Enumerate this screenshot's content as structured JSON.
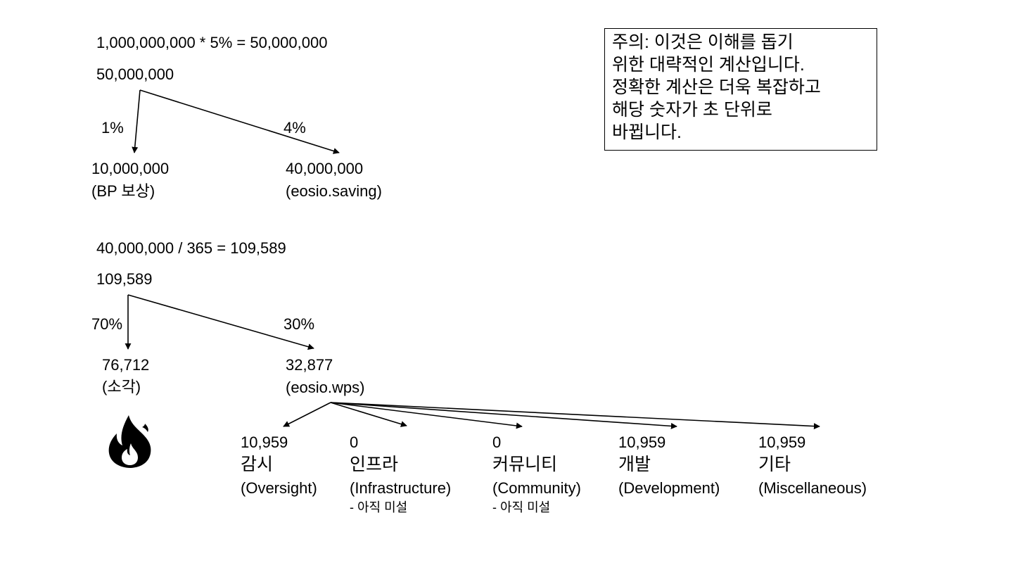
{
  "calc1": {
    "formula": "1,000,000,000 * 5% = 50,000,000",
    "root": "50,000,000",
    "pct_left": "1%",
    "pct_right": "4%",
    "left_value": "10,000,000",
    "left_label": "(BP 보상)",
    "right_value": "40,000,000",
    "right_label": "(eosio.saving)"
  },
  "calc2": {
    "formula": "40,000,000 / 365 = 109,589",
    "root": "109,589",
    "pct_left": "70%",
    "pct_right": "30%",
    "left_value": "76,712",
    "left_label": "(소각)",
    "right_value": "32,877",
    "right_label": "(eosio.wps)"
  },
  "wps_items": [
    {
      "value": "10,959",
      "kr": "감시",
      "en": "(Oversight)",
      "note": ""
    },
    {
      "value": "0",
      "kr": "인프라",
      "en": "(Infrastructure)",
      "note": "- 아직 미설"
    },
    {
      "value": "0",
      "kr": "커뮤니티",
      "en": "(Community)",
      "note": "- 아직 미설"
    },
    {
      "value": "10,959",
      "kr": "개발",
      "en": "(Development)",
      "note": ""
    },
    {
      "value": "10,959",
      "kr": "기타",
      "en": "(Miscellaneous)",
      "note": ""
    }
  ],
  "notice": {
    "lines": [
      "주의: 이것은 이해를 돕기",
      "위한 대략적인 계산입니다.",
      "정확한 계산은 더욱 복잡하고",
      "해당 숫자가 초 단위로",
      "바뀝니다."
    ]
  },
  "icons": {
    "burn": "fire-icon"
  }
}
